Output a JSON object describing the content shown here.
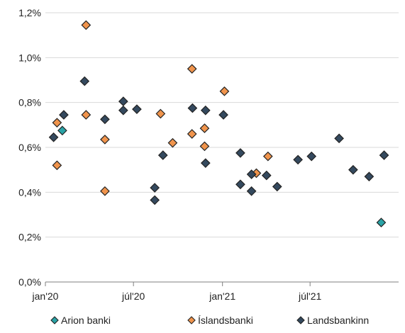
{
  "chart_data": {
    "type": "scatter",
    "title": "",
    "xlabel": "",
    "ylabel": "",
    "x_axis": {
      "type": "date",
      "range": [
        "2020-01-01",
        "2021-12-31"
      ],
      "ticks": [
        {
          "value": "2020-01-01",
          "label": "jan'20"
        },
        {
          "value": "2020-07-01",
          "label": "júl'20"
        },
        {
          "value": "2021-01-01",
          "label": "jan'21"
        },
        {
          "value": "2021-07-01",
          "label": "júl'21"
        }
      ]
    },
    "y_axis": {
      "range": [
        0,
        1.2
      ],
      "ticks": [
        {
          "value": 0.0,
          "label": "0,0%"
        },
        {
          "value": 0.2,
          "label": "0,2%"
        },
        {
          "value": 0.4,
          "label": "0,4%"
        },
        {
          "value": 0.6,
          "label": "0,6%"
        },
        {
          "value": 0.8,
          "label": "0,8%"
        },
        {
          "value": 1.0,
          "label": "1,0%"
        },
        {
          "value": 1.2,
          "label": "1,2%"
        }
      ]
    },
    "grid": {
      "horizontal": true,
      "vertical": false
    },
    "legend_position": "bottom",
    "marker": "diamond",
    "series": [
      {
        "name": "Arion banki",
        "color": "#2AA3A6",
        "points": [
          {
            "x": "2020-02-05",
            "y": 0.675
          },
          {
            "x": "2021-11-25",
            "y": 0.265
          }
        ]
      },
      {
        "name": "Íslandsbanki",
        "color": "#F0944C",
        "points": [
          {
            "x": "2020-01-25",
            "y": 0.71
          },
          {
            "x": "2020-01-25",
            "y": 0.52
          },
          {
            "x": "2020-03-25",
            "y": 1.145
          },
          {
            "x": "2020-03-25",
            "y": 0.745
          },
          {
            "x": "2020-05-03",
            "y": 0.635
          },
          {
            "x": "2020-05-03",
            "y": 0.405
          },
          {
            "x": "2020-08-26",
            "y": 0.75
          },
          {
            "x": "2020-09-20",
            "y": 0.62
          },
          {
            "x": "2020-10-30",
            "y": 0.95
          },
          {
            "x": "2020-10-30",
            "y": 0.66
          },
          {
            "x": "2020-11-25",
            "y": 0.685
          },
          {
            "x": "2020-11-25",
            "y": 0.605
          },
          {
            "x": "2021-01-05",
            "y": 0.85
          },
          {
            "x": "2021-03-12",
            "y": 0.485
          },
          {
            "x": "2021-04-05",
            "y": 0.56
          }
        ]
      },
      {
        "name": "Landsbankinn",
        "color": "#34495E",
        "points": [
          {
            "x": "2020-01-18",
            "y": 0.645
          },
          {
            "x": "2020-02-08",
            "y": 0.745
          },
          {
            "x": "2020-03-22",
            "y": 0.895
          },
          {
            "x": "2020-05-03",
            "y": 0.725
          },
          {
            "x": "2020-06-10",
            "y": 0.805
          },
          {
            "x": "2020-06-10",
            "y": 0.765
          },
          {
            "x": "2020-07-08",
            "y": 0.77
          },
          {
            "x": "2020-08-14",
            "y": 0.42
          },
          {
            "x": "2020-08-14",
            "y": 0.365
          },
          {
            "x": "2020-08-31",
            "y": 0.565
          },
          {
            "x": "2020-10-31",
            "y": 0.775
          },
          {
            "x": "2020-11-27",
            "y": 0.765
          },
          {
            "x": "2020-11-27",
            "y": 0.53
          },
          {
            "x": "2021-01-03",
            "y": 0.745
          },
          {
            "x": "2021-02-07",
            "y": 0.575
          },
          {
            "x": "2021-02-07",
            "y": 0.435
          },
          {
            "x": "2021-03-02",
            "y": 0.48
          },
          {
            "x": "2021-03-02",
            "y": 0.405
          },
          {
            "x": "2021-04-02",
            "y": 0.475
          },
          {
            "x": "2021-04-24",
            "y": 0.425
          },
          {
            "x": "2021-06-06",
            "y": 0.545
          },
          {
            "x": "2021-07-04",
            "y": 0.56
          },
          {
            "x": "2021-08-30",
            "y": 0.64
          },
          {
            "x": "2021-09-28",
            "y": 0.5
          },
          {
            "x": "2021-10-31",
            "y": 0.47
          },
          {
            "x": "2021-12-01",
            "y": 0.565
          }
        ]
      }
    ]
  }
}
